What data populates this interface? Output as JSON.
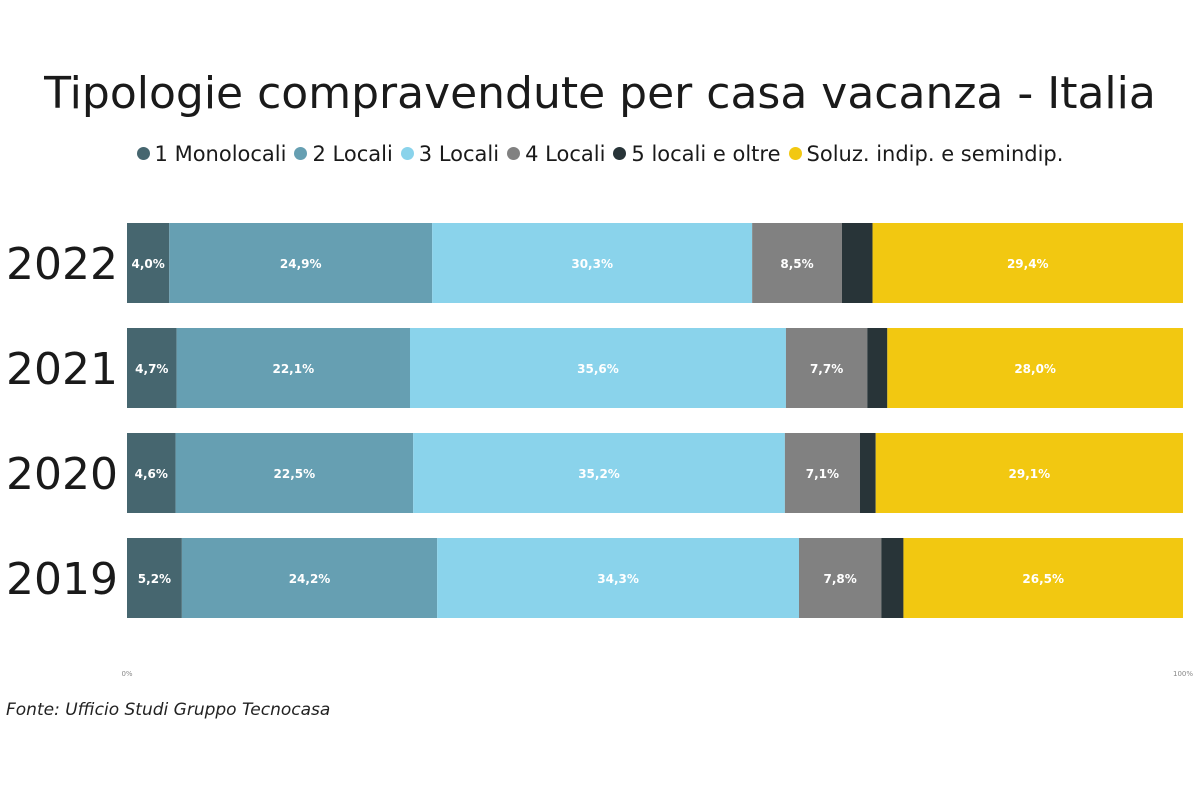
{
  "chart_data": {
    "type": "bar",
    "orientation": "horizontal",
    "stacked": true,
    "percent_stacked": true,
    "title": "Tipologie compravendute per casa vacanza - Italia",
    "categories": [
      "2022",
      "2021",
      "2020",
      "2019"
    ],
    "xlim": [
      0,
      100
    ],
    "x_ticks": [
      "0%",
      "100%"
    ],
    "legend_position": "top",
    "grid": false,
    "series": [
      {
        "name": "1 Monolocali",
        "color": "#46666f",
        "values": [
          4.0,
          4.7,
          4.6,
          5.2
        ],
        "labels": [
          "4,0%",
          "4,7%",
          "4,6%",
          "5,2%"
        ]
      },
      {
        "name": "2 Locali",
        "color": "#669fb2",
        "values": [
          24.9,
          22.1,
          22.5,
          24.2
        ],
        "labels": [
          "24,9%",
          "22,1%",
          "22,5%",
          "24,2%"
        ]
      },
      {
        "name": "3 Locali",
        "color": "#8ad3eb",
        "values": [
          30.3,
          35.6,
          35.2,
          34.3
        ],
        "labels": [
          "30,3%",
          "35,6%",
          "35,2%",
          "34,3%"
        ]
      },
      {
        "name": "4 Locali",
        "color": "#818181",
        "values": [
          8.5,
          7.7,
          7.1,
          7.8
        ],
        "labels": [
          "8,5%",
          "7,7%",
          "7,1%",
          "7,8%"
        ]
      },
      {
        "name": "5 locali e oltre",
        "color": "#283438",
        "values": [
          2.9,
          1.9,
          1.5,
          2.1
        ],
        "labels": [
          "",
          "",
          "",
          ""
        ]
      },
      {
        "name": "Soluz. indip. e semindip.",
        "color": "#f2c811",
        "values": [
          29.4,
          28.0,
          29.1,
          26.5
        ],
        "labels": [
          "29,4%",
          "28,0%",
          "29,1%",
          "26,5%"
        ]
      }
    ]
  },
  "source_note": "Fonte: Ufficio Studi Gruppo Tecnocasa"
}
